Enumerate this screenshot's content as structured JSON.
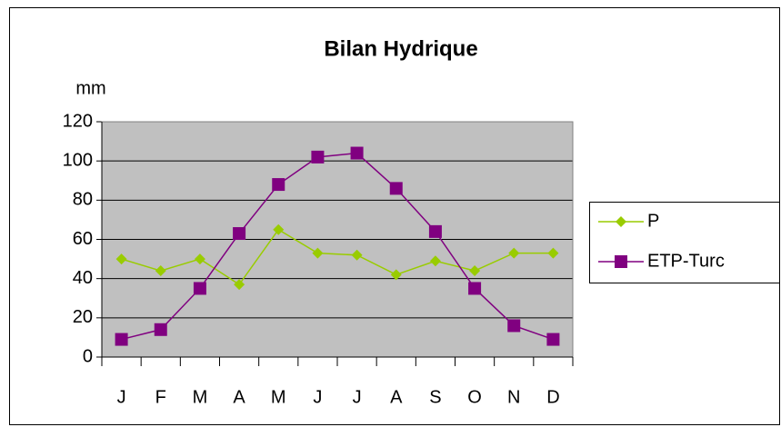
{
  "chart_data": {
    "type": "line",
    "title": "Bilan Hydrique",
    "y_label": "mm",
    "categories": [
      "J",
      "F",
      "M",
      "A",
      "M",
      "J",
      "J",
      "A",
      "S",
      "O",
      "N",
      "D"
    ],
    "series": [
      {
        "name": "P",
        "color": "#99cc00",
        "marker": "diamond",
        "values": [
          50,
          44,
          50,
          37,
          65,
          53,
          52,
          42,
          49,
          44,
          53,
          53
        ]
      },
      {
        "name": "ETP-Turc",
        "color": "#800080",
        "marker": "square",
        "values": [
          9,
          14,
          35,
          63,
          88,
          102,
          104,
          86,
          64,
          35,
          16,
          9
        ]
      }
    ],
    "ylim": [
      0,
      120
    ],
    "yticks": [
      0,
      20,
      40,
      60,
      80,
      100,
      120
    ],
    "grid": true,
    "plot_background": "#c0c0c0",
    "legend": "right"
  }
}
